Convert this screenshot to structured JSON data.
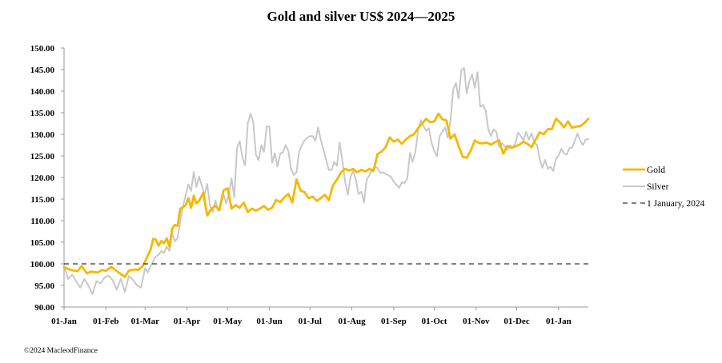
{
  "chart_data": {
    "type": "line",
    "title": "Gold and silver  US$ 2024—2025",
    "xlabel": "",
    "ylabel": "",
    "ylim": [
      90,
      150
    ],
    "yticks": [
      90,
      95,
      100,
      105,
      110,
      115,
      120,
      125,
      130,
      135,
      140,
      145,
      150
    ],
    "ytick_labels": [
      "90.00",
      "95.00",
      "100.00",
      "105.00",
      "110.00",
      "115.00",
      "120.00",
      "125.00",
      "130.00",
      "135.00",
      "140.00",
      "145.00",
      "150.00"
    ],
    "x_unit": "days since 01-Jan-2024",
    "xlim": [
      0,
      388
    ],
    "xticks": [
      0,
      31,
      60,
      91,
      121,
      152,
      182,
      213,
      244,
      274,
      305,
      335,
      366
    ],
    "xtick_labels": [
      "01-Jan",
      "01-Feb",
      "01-Mar",
      "01-Apr",
      "01-May",
      "01-Jun",
      "01-Jul",
      "01-Aug",
      "01-Sep",
      "01-Oct",
      "01-Nov",
      "01-Dec",
      "01-Jan"
    ],
    "legend_position": "right",
    "series": [
      {
        "name": "Gold",
        "color": "#f5b800",
        "style": "solid",
        "x": [
          0,
          5,
          10,
          13,
          17,
          20,
          25,
          28,
          31,
          35,
          40,
          45,
          48,
          52,
          55,
          58,
          60,
          62,
          64,
          66,
          68,
          70,
          72,
          74,
          76,
          78,
          80,
          82,
          84,
          86,
          88,
          90,
          92,
          94,
          96,
          98,
          100,
          103,
          106,
          109,
          112,
          115,
          118,
          121,
          124,
          127,
          130,
          133,
          136,
          139,
          142,
          145,
          148,
          151,
          154,
          157,
          160,
          163,
          166,
          169,
          172,
          175,
          178,
          181,
          184,
          187,
          190,
          193,
          196,
          199,
          202,
          205,
          208,
          211,
          214,
          217,
          220,
          223,
          226,
          229,
          232,
          235,
          238,
          241,
          244,
          247,
          250,
          253,
          256,
          259,
          262,
          265,
          268,
          271,
          274,
          277,
          280,
          283,
          286,
          289,
          292,
          295,
          298,
          301,
          304,
          307,
          310,
          313,
          316,
          319,
          322,
          325,
          328,
          331,
          334,
          337,
          340,
          343,
          346,
          349,
          352,
          355,
          358,
          361,
          364,
          367,
          370,
          373,
          376,
          379,
          382,
          385,
          388
        ],
        "values": [
          99.2,
          98.6,
          98.3,
          99.5,
          97.8,
          98.2,
          98.0,
          98.6,
          98.4,
          99.3,
          98.1,
          97.0,
          98.4,
          98.7,
          98.6,
          99.4,
          100.5,
          102.0,
          103.2,
          105.8,
          105.6,
          104.2,
          105.3,
          104.8,
          105.9,
          104.0,
          108.2,
          109.0,
          108.8,
          112.8,
          113.1,
          113.6,
          115.2,
          113.0,
          115.8,
          114.0,
          114.6,
          116.5,
          111.2,
          112.8,
          113.4,
          112.5,
          117.0,
          117.5,
          112.8,
          113.6,
          113.0,
          114.2,
          112.0,
          112.8,
          112.3,
          112.8,
          113.4,
          112.5,
          113.0,
          114.8,
          114.3,
          115.4,
          116.2,
          114.2,
          119.6,
          117.0,
          116.6,
          115.2,
          115.6,
          114.6,
          115.2,
          116.0,
          114.8,
          118.2,
          119.5,
          121.2,
          122.0,
          121.6,
          122.0,
          121.2,
          121.8,
          121.4,
          122.0,
          121.5,
          125.4,
          126.0,
          127.0,
          129.3,
          128.3,
          128.8,
          127.8,
          128.8,
          129.6,
          130.0,
          131.4,
          132.5,
          133.6,
          132.8,
          133.0,
          134.8,
          133.5,
          133.2,
          129.0,
          130.0,
          127.3,
          124.8,
          124.6,
          126.2,
          128.6,
          128.0,
          127.9,
          128.1,
          127.6,
          128.2,
          128.6,
          125.5,
          127.3,
          126.9,
          127.2,
          127.6,
          128.3,
          127.8,
          127.0,
          128.8,
          130.5,
          130.0,
          131.2,
          131.2,
          133.6,
          132.8,
          131.6,
          133.0,
          131.5,
          131.8,
          131.9,
          132.6,
          133.6
        ]
      },
      {
        "name": "Silver",
        "color": "#c8c8c8",
        "style": "solid",
        "x": [
          0,
          3,
          6,
          9,
          12,
          15,
          18,
          21,
          24,
          27,
          30,
          33,
          36,
          39,
          42,
          45,
          48,
          51,
          54,
          57,
          60,
          62,
          64,
          66,
          68,
          70,
          72,
          74,
          76,
          78,
          80,
          82,
          84,
          86,
          88,
          90,
          92,
          94,
          96,
          98,
          100,
          102,
          104,
          106,
          108,
          110,
          112,
          114,
          116,
          118,
          120,
          122,
          124,
          126,
          128,
          130,
          132,
          134,
          136,
          138,
          140,
          142,
          144,
          146,
          148,
          150,
          152,
          154,
          156,
          158,
          160,
          162,
          164,
          166,
          168,
          170,
          172,
          174,
          176,
          178,
          180,
          182,
          184,
          186,
          188,
          190,
          192,
          194,
          196,
          198,
          200,
          202,
          204,
          206,
          208,
          210,
          212,
          214,
          216,
          218,
          220,
          222,
          224,
          226,
          228,
          230,
          232,
          234,
          236,
          238,
          240,
          242,
          244,
          246,
          248,
          250,
          252,
          254,
          256,
          258,
          260,
          262,
          264,
          266,
          268,
          270,
          272,
          274,
          276,
          278,
          280,
          282,
          284,
          286,
          288,
          290,
          292,
          294,
          296,
          298,
          300,
          302,
          304,
          306,
          308,
          310,
          312,
          314,
          316,
          318,
          320,
          322,
          324,
          326,
          328,
          330,
          332,
          334,
          336,
          338,
          340,
          342,
          344,
          346,
          348,
          350,
          352,
          354,
          356,
          358,
          360,
          362,
          364,
          366,
          368,
          370,
          372,
          374,
          376,
          378,
          380,
          382,
          384,
          386,
          388
        ],
        "values": [
          99.5,
          96.5,
          97.5,
          96.0,
          94.5,
          96.5,
          95.0,
          93.0,
          96.0,
          95.5,
          96.8,
          97.3,
          96.2,
          94.0,
          96.5,
          93.5,
          97.2,
          96.3,
          95.0,
          94.5,
          99.0,
          98.0,
          99.5,
          100.6,
          101.7,
          102.1,
          103.0,
          102.5,
          104.0,
          103.0,
          107.1,
          105.2,
          106.0,
          109.8,
          113.4,
          115.9,
          118.4,
          116.9,
          121.3,
          117.8,
          120.2,
          118.0,
          116.0,
          118.5,
          113.5,
          112.0,
          114.7,
          112.3,
          113.5,
          116.1,
          114.0,
          116.2,
          119.8,
          115.4,
          126.9,
          128.4,
          124.7,
          122.8,
          132.6,
          134.8,
          133.0,
          125.3,
          124.0,
          127.5,
          125.9,
          131.8,
          131.8,
          123.4,
          125.6,
          122.5,
          125.6,
          125.8,
          127.5,
          126.2,
          122.0,
          120.6,
          121.2,
          126.0,
          127.5,
          128.6,
          129.2,
          129.6,
          129.6,
          128.5,
          131.6,
          128.8,
          126.4,
          124.0,
          121.7,
          121.8,
          123.6,
          122.7,
          128.1,
          123.8,
          119.1,
          116.0,
          120.1,
          121.6,
          119.4,
          116.2,
          116.7,
          114.2,
          119.5,
          120.5,
          121.8,
          122.5,
          122.2,
          121.1,
          121.2,
          120.8,
          120.5,
          120.2,
          119.0,
          118.3,
          117.6,
          118.9,
          118.7,
          119.8,
          125.7,
          123.6,
          125.9,
          130.9,
          133.3,
          132.0,
          130.8,
          131.4,
          128.0,
          126.1,
          124.9,
          129.6,
          130.6,
          131.6,
          129.2,
          133.2,
          140.4,
          141.9,
          138.3,
          144.8,
          145.4,
          139.5,
          142.3,
          143.9,
          140.7,
          144.4,
          136.4,
          136.8,
          135.6,
          131.1,
          129.6,
          131.2,
          130.5,
          127.1,
          128.0,
          127.3,
          126.4,
          127.5,
          126.8,
          127.9,
          130.4,
          129.6,
          128.6,
          130.6,
          128.8,
          130.2,
          128.2,
          127.5,
          124.3,
          122.2,
          124.1,
          122.0,
          122.5,
          121.5,
          124.3,
          125.1,
          126.6,
          125.6,
          125.3,
          126.8,
          127.0,
          128.5,
          130.2,
          128.5,
          127.5,
          128.8,
          128.9
        ]
      },
      {
        "name": "1 January, 2024",
        "color": "#000000",
        "style": "dashed",
        "x": [
          0,
          388
        ],
        "values": [
          100,
          100
        ]
      }
    ]
  },
  "footer": {
    "copyright": "©2024 MacleodFinance"
  }
}
